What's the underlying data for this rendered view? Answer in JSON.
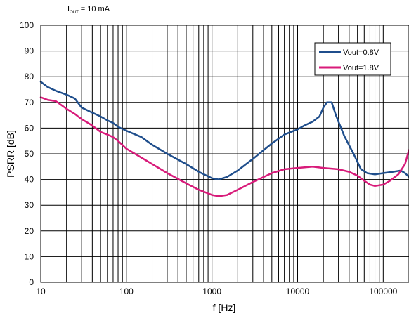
{
  "condition": {
    "main": "I",
    "sub": "OUT",
    "rest": " = 10 mA"
  },
  "chart_data": {
    "type": "line",
    "xlabel": "f [Hz]",
    "ylabel": "PSRR [dB]",
    "xscale": "log",
    "xlim": [
      10,
      200000
    ],
    "ylim": [
      0,
      100
    ],
    "grid": true,
    "legend_position": "top-right",
    "x_tick_labels": [
      "10",
      "100",
      "1000",
      "10000",
      "100000"
    ],
    "y_tick_labels": [
      "0",
      "10",
      "20",
      "30",
      "40",
      "50",
      "60",
      "70",
      "80",
      "90",
      "100"
    ],
    "series": [
      {
        "name": "Vout=0.8V",
        "color": "#1f4e8c",
        "points": [
          [
            10,
            78
          ],
          [
            12,
            76
          ],
          [
            15,
            74.5
          ],
          [
            20,
            73
          ],
          [
            25,
            71.5
          ],
          [
            30,
            68
          ],
          [
            40,
            66
          ],
          [
            50,
            64.5
          ],
          [
            60,
            63
          ],
          [
            70,
            62
          ],
          [
            80,
            60.5
          ],
          [
            100,
            59
          ],
          [
            150,
            56.5
          ],
          [
            200,
            53.5
          ],
          [
            300,
            50
          ],
          [
            500,
            46
          ],
          [
            700,
            43
          ],
          [
            1000,
            40.5
          ],
          [
            1200,
            40
          ],
          [
            1500,
            41
          ],
          [
            2000,
            43.5
          ],
          [
            3000,
            48
          ],
          [
            5000,
            54
          ],
          [
            7000,
            57.5
          ],
          [
            10000,
            59.5
          ],
          [
            12000,
            61
          ],
          [
            15000,
            62.5
          ],
          [
            18000,
            64.5
          ],
          [
            20000,
            68
          ],
          [
            22000,
            70
          ],
          [
            25000,
            70
          ],
          [
            28000,
            65
          ],
          [
            35000,
            57
          ],
          [
            45000,
            50
          ],
          [
            55000,
            44
          ],
          [
            65000,
            42.5
          ],
          [
            80000,
            42
          ],
          [
            100000,
            42.5
          ],
          [
            130000,
            43
          ],
          [
            160000,
            43.5
          ],
          [
            180000,
            42.5
          ],
          [
            200000,
            41
          ]
        ]
      },
      {
        "name": "Vout=1.8V",
        "color": "#d81b7a",
        "points": [
          [
            10,
            72
          ],
          [
            12,
            71
          ],
          [
            15,
            70.5
          ],
          [
            20,
            67.5
          ],
          [
            25,
            65.5
          ],
          [
            30,
            63.5
          ],
          [
            40,
            61
          ],
          [
            50,
            58.5
          ],
          [
            60,
            57.5
          ],
          [
            70,
            56.5
          ],
          [
            80,
            55
          ],
          [
            100,
            52
          ],
          [
            150,
            48.5
          ],
          [
            200,
            46
          ],
          [
            300,
            42.5
          ],
          [
            500,
            38.5
          ],
          [
            700,
            36
          ],
          [
            1000,
            34
          ],
          [
            1200,
            33.5
          ],
          [
            1500,
            34
          ],
          [
            2000,
            36
          ],
          [
            3000,
            39
          ],
          [
            5000,
            42.5
          ],
          [
            7000,
            44
          ],
          [
            10000,
            44.5
          ],
          [
            15000,
            45
          ],
          [
            20000,
            44.5
          ],
          [
            30000,
            44
          ],
          [
            40000,
            43
          ],
          [
            50000,
            41.5
          ],
          [
            60000,
            39.5
          ],
          [
            70000,
            38
          ],
          [
            80000,
            37.5
          ],
          [
            100000,
            38
          ],
          [
            120000,
            39.5
          ],
          [
            150000,
            42
          ],
          [
            180000,
            46
          ],
          [
            200000,
            51.5
          ]
        ]
      }
    ]
  }
}
